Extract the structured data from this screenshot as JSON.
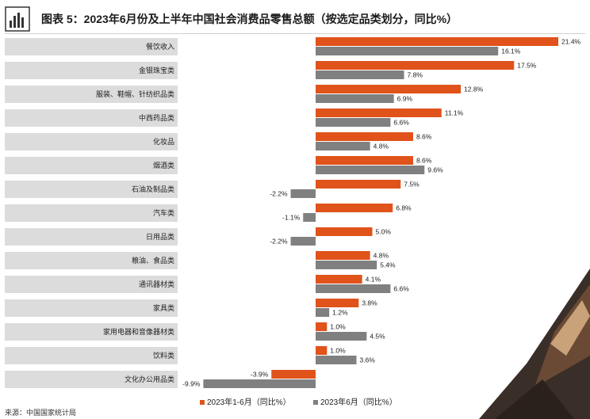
{
  "header": {
    "title": "图表 5：2023年6月份及上半年中国社会消费品零售总额（按选定品类划分，同比%）",
    "logo_icon": "bar-chart-icon"
  },
  "source": "来源：中国国家统计局",
  "colors": {
    "series_ytd": "#e0531b",
    "series_june": "#808080",
    "category_band": "#dcdcdc"
  },
  "chart_data": {
    "type": "bar",
    "orientation": "horizontal",
    "categories": [
      "餐饮收入",
      "金银珠宝类",
      "服装、鞋帽、针纺织品类",
      "中西药品类",
      "化妆品",
      "烟酒类",
      "石油及制品类",
      "汽车类",
      "日用品类",
      "粮油、食品类",
      "通讯器材类",
      "家具类",
      "家用电器和音像器材类",
      "饮料类",
      "文化办公用品类"
    ],
    "series": [
      {
        "name": "2023年1-6月（同比%）",
        "values": [
          21.4,
          17.5,
          12.8,
          11.1,
          8.6,
          8.6,
          7.5,
          6.8,
          5.0,
          4.8,
          4.1,
          3.8,
          1.0,
          1.0,
          -3.9
        ]
      },
      {
        "name": "2023年6月（同比%）",
        "values": [
          16.1,
          7.8,
          6.9,
          6.6,
          4.8,
          9.6,
          -2.2,
          -1.1,
          -2.2,
          5.4,
          6.6,
          1.2,
          4.5,
          3.6,
          -9.9
        ]
      }
    ],
    "value_labels": [
      [
        "21.4%",
        "17.5%",
        "12.8%",
        "11.1%",
        "8.6%",
        "8.6%",
        "7.5%",
        "6.8%",
        "5.0%",
        "4.8%",
        "4.1%",
        "3.8%",
        "1.0%",
        "1.0%",
        "-3.9%"
      ],
      [
        "16.1%",
        "7.8%",
        "6.9%",
        "6.6%",
        "4.8%",
        "9.6%",
        "-2.2%",
        "-1.1%",
        "-2.2%",
        "5.4%",
        "6.6%",
        "1.2%",
        "4.5%",
        "3.6%",
        "-9.9%"
      ]
    ],
    "legend": {
      "position": "bottom"
    },
    "grid": false
  }
}
